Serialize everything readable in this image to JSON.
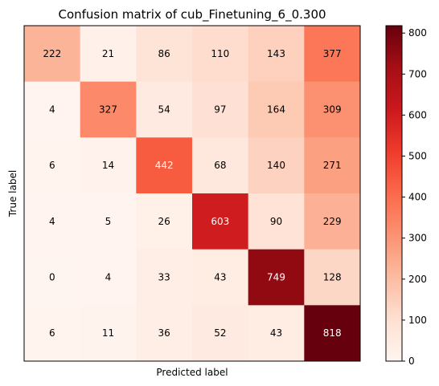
{
  "chart_data": {
    "type": "heatmap",
    "title": "Confusion matrix of cub_Finetuning_6_0.300",
    "xlabel": "Predicted label",
    "ylabel": "True label",
    "colormap": "Reds",
    "colorbar": {
      "min": 0,
      "max": 818,
      "ticks": [
        0,
        100,
        200,
        300,
        400,
        500,
        600,
        700,
        800
      ]
    },
    "matrix": [
      [
        222,
        21,
        86,
        110,
        143,
        377
      ],
      [
        4,
        327,
        54,
        97,
        164,
        309
      ],
      [
        6,
        14,
        442,
        68,
        140,
        271
      ],
      [
        4,
        5,
        26,
        603,
        90,
        229
      ],
      [
        0,
        4,
        33,
        43,
        749,
        128
      ],
      [
        6,
        11,
        36,
        52,
        43,
        818
      ]
    ],
    "grid": false
  }
}
